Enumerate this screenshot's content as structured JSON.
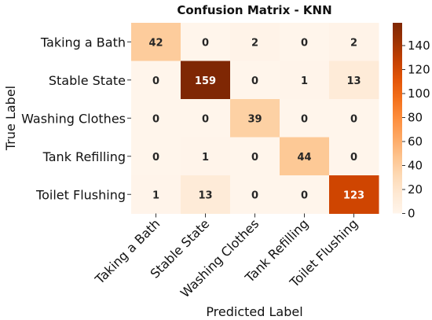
{
  "chart_data": {
    "type": "heatmap",
    "title": "Confusion Matrix - KNN",
    "xlabel": "Predicted Label",
    "ylabel": "True Label",
    "categories": [
      "Taking a Bath",
      "Stable State",
      "Washing Clothes",
      "Tank Refilling",
      "Toilet Flushing"
    ],
    "matrix": [
      [
        42,
        0,
        2,
        0,
        2
      ],
      [
        0,
        159,
        0,
        1,
        13
      ],
      [
        0,
        0,
        39,
        0,
        0
      ],
      [
        0,
        1,
        0,
        44,
        0
      ],
      [
        1,
        13,
        0,
        0,
        123
      ]
    ],
    "colorbar": {
      "ticks": [
        0,
        20,
        40,
        60,
        80,
        100,
        120,
        140
      ],
      "range": [
        0,
        159
      ]
    },
    "colormap": "Oranges",
    "colors": {
      "low": "#fff5eb",
      "high": "#7f2704"
    }
  }
}
